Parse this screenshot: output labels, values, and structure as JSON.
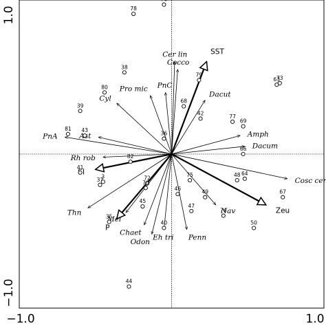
{
  "chart_data": {
    "type": "scatter",
    "title": "",
    "xlabel": "",
    "ylabel": "",
    "xlim": [
      -1.0,
      1.0
    ],
    "ylim": [
      -1.0,
      1.0
    ],
    "x_ticks": [
      "−1.0",
      "1.0"
    ],
    "y_ticks": [
      "1.0",
      "−1.0"
    ],
    "sites": [
      {
        "label": "76",
        "x": -0.05,
        "y": 0.97
      },
      {
        "label": "78",
        "x": -0.25,
        "y": 0.91
      },
      {
        "label": "38",
        "x": -0.31,
        "y": 0.53
      },
      {
        "label": "79",
        "x": 0.18,
        "y": 0.48
      },
      {
        "label": "63",
        "x": 0.69,
        "y": 0.45
      },
      {
        "label": "73",
        "x": 0.71,
        "y": 0.46
      },
      {
        "label": "80",
        "x": -0.44,
        "y": 0.4
      },
      {
        "label": "68",
        "x": 0.08,
        "y": 0.31
      },
      {
        "label": "39",
        "x": -0.6,
        "y": 0.28
      },
      {
        "label": "42",
        "x": 0.19,
        "y": 0.23
      },
      {
        "label": "77",
        "x": 0.4,
        "y": 0.21
      },
      {
        "label": "69",
        "x": 0.47,
        "y": 0.18
      },
      {
        "label": "81",
        "x": -0.68,
        "y": 0.13
      },
      {
        "label": "43",
        "x": -0.57,
        "y": 0.12
      },
      {
        "label": "36",
        "x": -0.05,
        "y": 0.1
      },
      {
        "label": "66",
        "x": 0.47,
        "y": 0.0
      },
      {
        "label": "82",
        "x": -0.27,
        "y": -0.05
      },
      {
        "label": "41",
        "x": -0.6,
        "y": -0.12
      },
      {
        "label": "37",
        "x": -0.47,
        "y": -0.2
      },
      {
        "label": "3",
        "x": -0.45,
        "y": -0.18
      },
      {
        "label": "72",
        "x": -0.16,
        "y": -0.19
      },
      {
        "label": "70",
        "x": -0.17,
        "y": -0.22
      },
      {
        "label": "75",
        "x": 0.12,
        "y": -0.17
      },
      {
        "label": "48",
        "x": 0.43,
        "y": -0.17
      },
      {
        "label": "64",
        "x": 0.48,
        "y": -0.16
      },
      {
        "label": "46",
        "x": 0.04,
        "y": -0.26
      },
      {
        "label": "49",
        "x": 0.22,
        "y": -0.28
      },
      {
        "label": "67",
        "x": 0.73,
        "y": -0.28
      },
      {
        "label": "47",
        "x": 0.13,
        "y": -0.37
      },
      {
        "label": "45",
        "x": -0.19,
        "y": -0.34
      },
      {
        "label": "74",
        "x": 0.34,
        "y": -0.4
      },
      {
        "label": "35",
        "x": -0.41,
        "y": -0.44
      },
      {
        "label": "40",
        "x": -0.05,
        "y": -0.48
      },
      {
        "label": "50",
        "x": 0.54,
        "y": -0.48
      },
      {
        "label": "44",
        "x": -0.28,
        "y": -0.86
      }
    ],
    "species_arrows": [
      {
        "label": "Cer lin",
        "x": 0.02,
        "y": 0.6
      },
      {
        "label": "Cocco",
        "x": 0.04,
        "y": 0.55
      },
      {
        "label": "PnC",
        "x": -0.04,
        "y": 0.4
      },
      {
        "label": "Pro mic",
        "x": -0.14,
        "y": 0.38
      },
      {
        "label": "Cyl",
        "x": -0.36,
        "y": 0.33
      },
      {
        "label": "Dacut",
        "x": 0.22,
        "y": 0.35
      },
      {
        "label": "Amph",
        "x": 0.45,
        "y": 0.12
      },
      {
        "label": "Dacum",
        "x": 0.48,
        "y": 0.05
      },
      {
        "label": "Ast",
        "x": -0.48,
        "y": 0.11
      },
      {
        "label": "PnA",
        "x": -0.7,
        "y": 0.11
      },
      {
        "label": "Rh rob",
        "x": -0.45,
        "y": -0.02
      },
      {
        "label": "Cosc cen",
        "x": 0.76,
        "y": -0.16
      },
      {
        "label": "Nav",
        "x": 0.29,
        "y": -0.33
      },
      {
        "label": "Thn",
        "x": -0.55,
        "y": -0.35
      },
      {
        "label": "Mel",
        "x": -0.3,
        "y": -0.38
      },
      {
        "label": "Chaet",
        "x": -0.18,
        "y": -0.46
      },
      {
        "label": "Eh tri",
        "x": -0.05,
        "y": -0.49
      },
      {
        "label": "Odon",
        "x": -0.13,
        "y": -0.52
      },
      {
        "label": "Penn",
        "x": 0.1,
        "y": -0.49
      }
    ],
    "env_arrows": [
      {
        "label": "SST",
        "x": 0.23,
        "y": 0.6
      },
      {
        "label": "SI",
        "x": -0.5,
        "y": -0.1
      },
      {
        "label": "P",
        "x": -0.36,
        "y": -0.42
      },
      {
        "label": "Zeu",
        "x": 0.62,
        "y": -0.33
      }
    ]
  }
}
